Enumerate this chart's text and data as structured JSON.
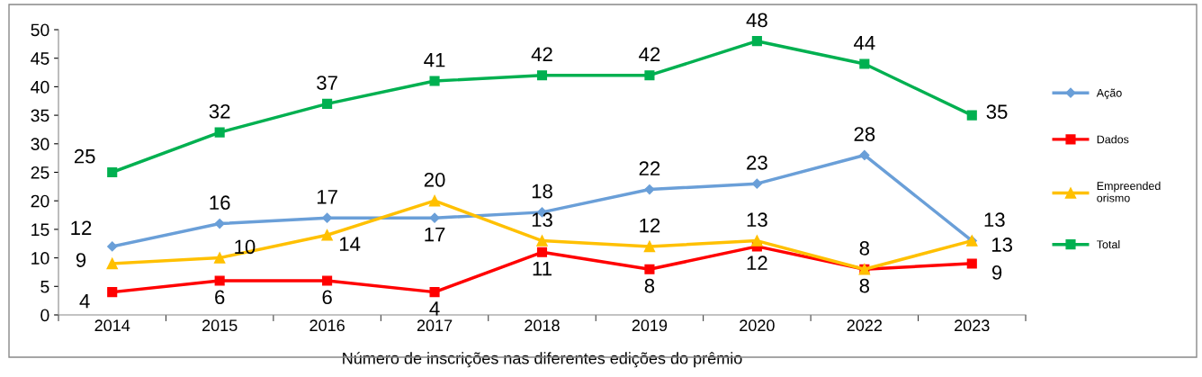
{
  "chart_data": {
    "type": "line",
    "xlabel": "Número de inscrições nas diferentes edições do prêmio",
    "categories": [
      "2014",
      "2015",
      "2016",
      "2017",
      "2018",
      "2019",
      "2020",
      "2022",
      "2023"
    ],
    "series": [
      {
        "name": "Ação",
        "color": "#6a9fd8",
        "marker": "diamond",
        "values": [
          12,
          16,
          17,
          17,
          18,
          22,
          23,
          28,
          13
        ]
      },
      {
        "name": "Dados",
        "color": "#ff0000",
        "marker": "square",
        "values": [
          4,
          6,
          6,
          4,
          11,
          8,
          12,
          8,
          9
        ]
      },
      {
        "name": "Empreended\norismo",
        "color": "#ffc000",
        "marker": "triangle",
        "values": [
          9,
          10,
          14,
          20,
          13,
          12,
          13,
          8,
          13
        ]
      },
      {
        "name": "Total",
        "color": "#00b050",
        "marker": "square",
        "values": [
          25,
          32,
          37,
          41,
          42,
          42,
          48,
          44,
          35
        ]
      }
    ],
    "ylim": [
      0,
      50
    ],
    "yticks": [
      0,
      5,
      10,
      15,
      20,
      25,
      30,
      35,
      40,
      45,
      50
    ],
    "grid": false,
    "legend": "right",
    "data_labels": true,
    "line_style": "solid"
  }
}
